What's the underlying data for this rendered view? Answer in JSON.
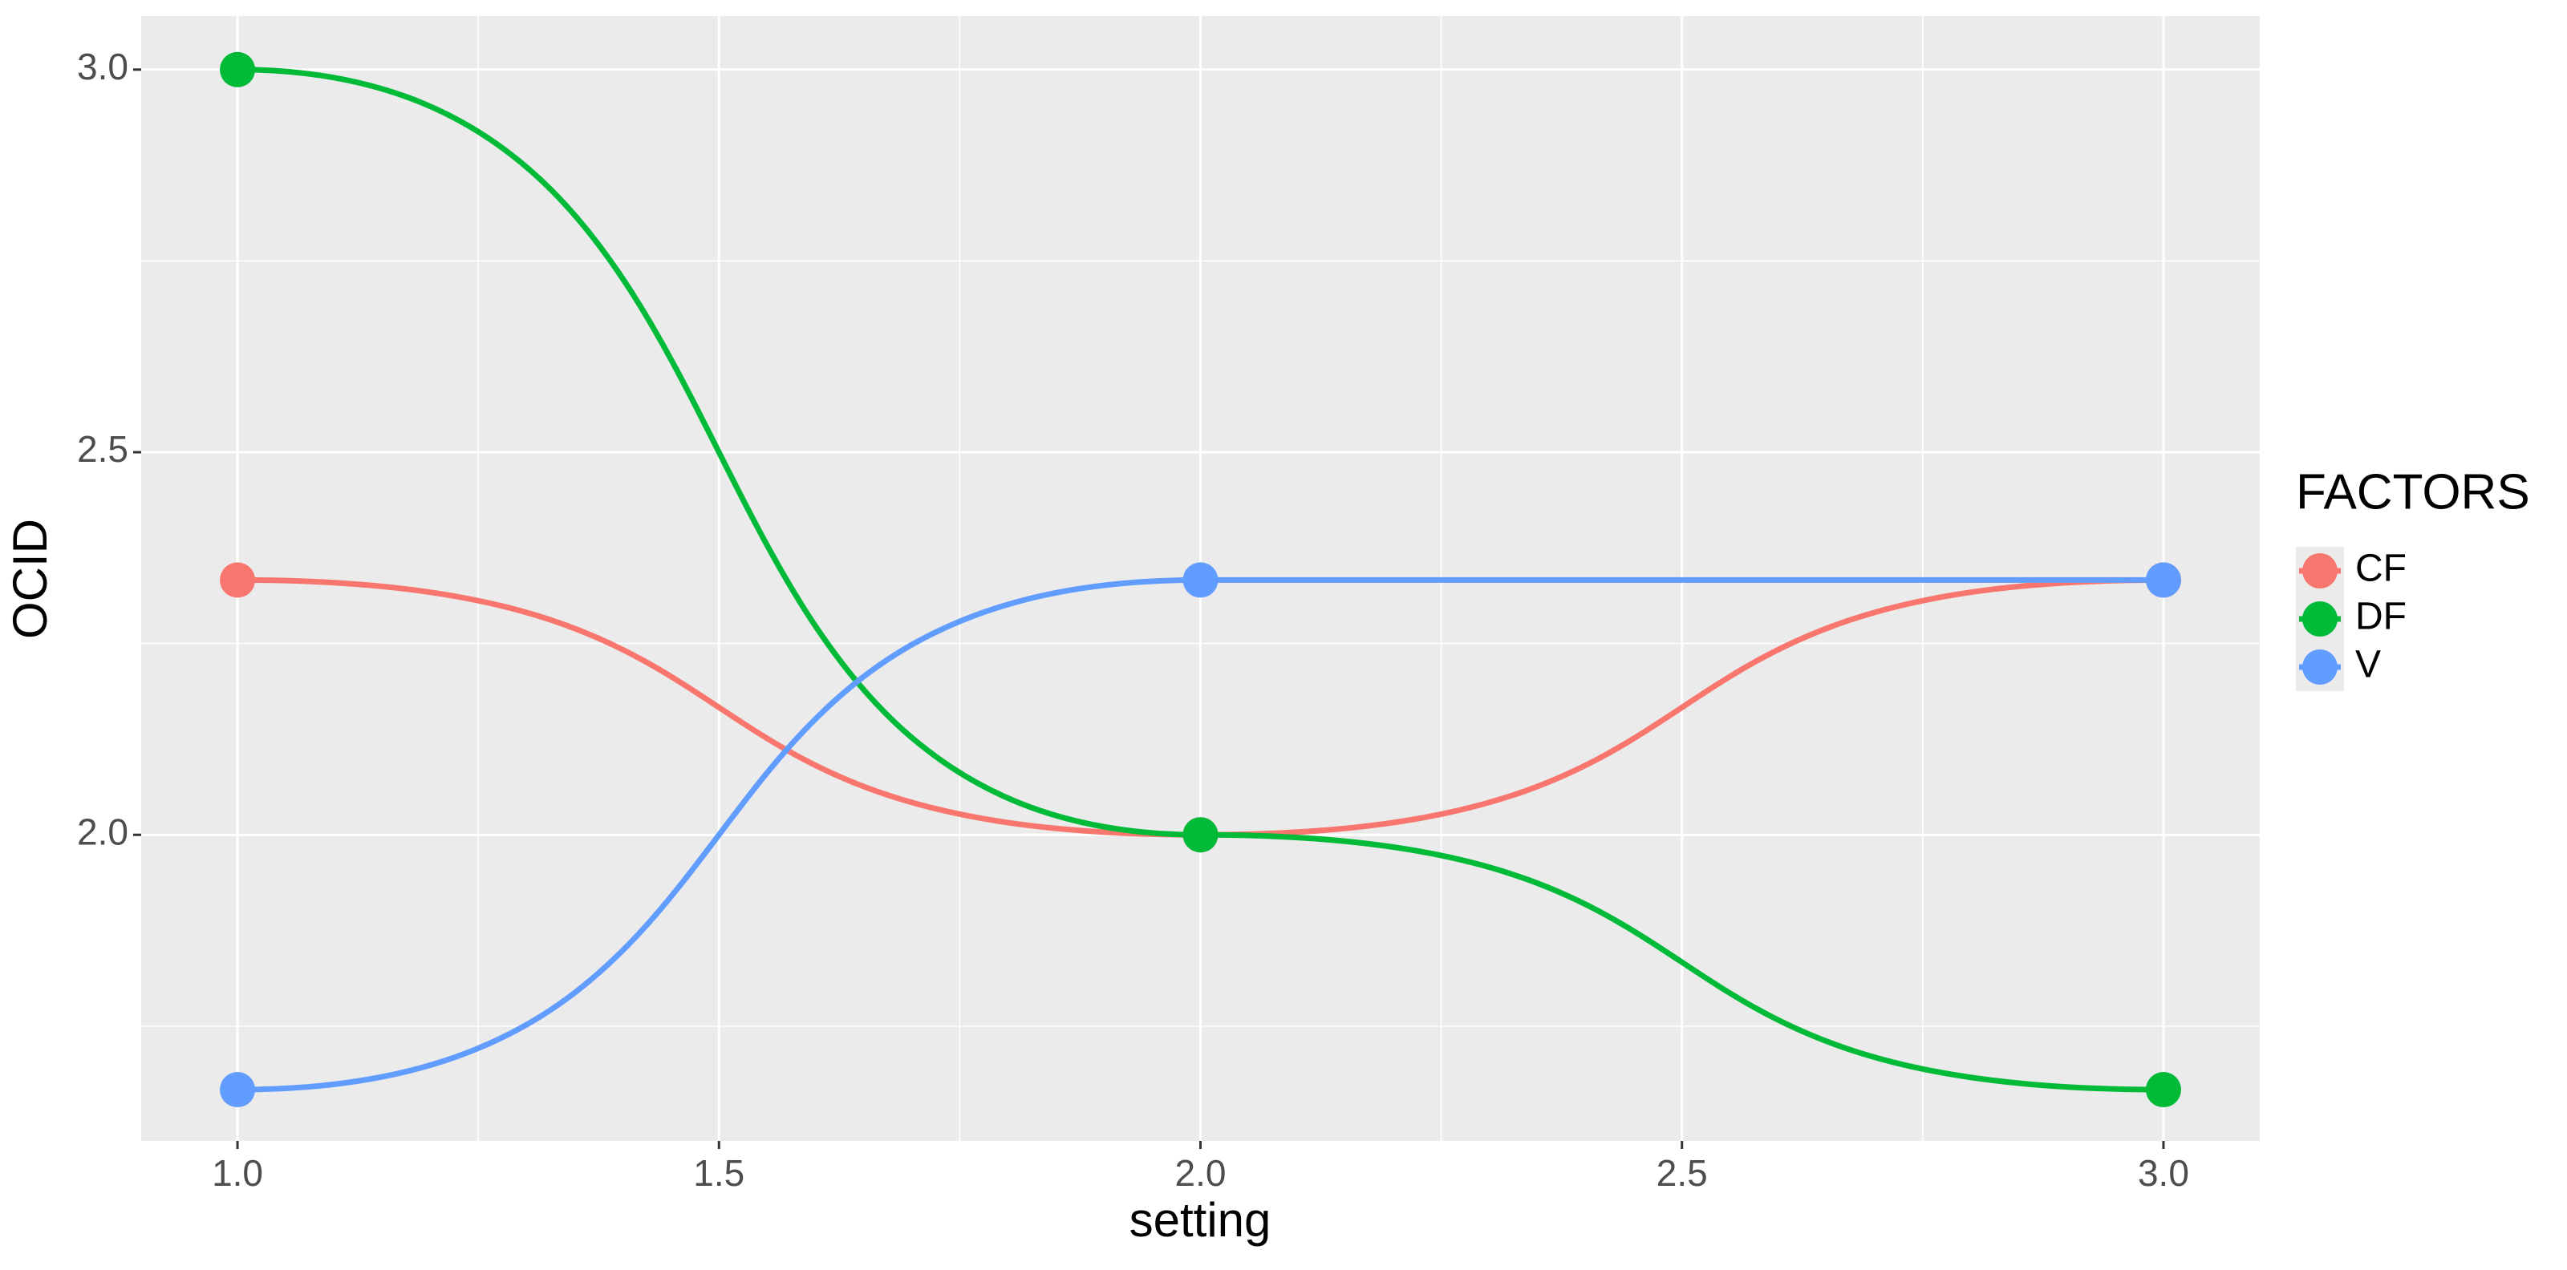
{
  "chart_data": {
    "type": "line",
    "x_label": "setting",
    "y_label": "OCID",
    "legend_title": "FACTORS",
    "x": [
      1,
      2,
      3
    ],
    "series": [
      {
        "name": "CF",
        "color": "#F8766D",
        "values": [
          2.333,
          2.0,
          2.333
        ]
      },
      {
        "name": "DF",
        "color": "#00BA38",
        "values": [
          3.0,
          2.0,
          1.667
        ]
      },
      {
        "name": "V",
        "color": "#619CFF",
        "values": [
          1.667,
          2.333,
          2.333
        ]
      }
    ],
    "xlim": [
      0.9,
      3.1
    ],
    "ylim": [
      1.6,
      3.07
    ],
    "xticks": [
      {
        "value": 1,
        "label": "1.0"
      },
      1.5,
      {
        "value": 2,
        "label": "2.0"
      },
      2.5,
      {
        "value": 3,
        "label": "3.0"
      }
    ],
    "yticks": [
      {
        "value": 2,
        "label": "2.0"
      },
      2.5,
      {
        "value": 3,
        "label": "3.0"
      }
    ],
    "minor_xticks": [
      1.25,
      1.75,
      2.25,
      2.75
    ],
    "minor_yticks": [
      1.75,
      2.25,
      2.75
    ],
    "grid": true,
    "legend": "right",
    "smooth": true
  }
}
